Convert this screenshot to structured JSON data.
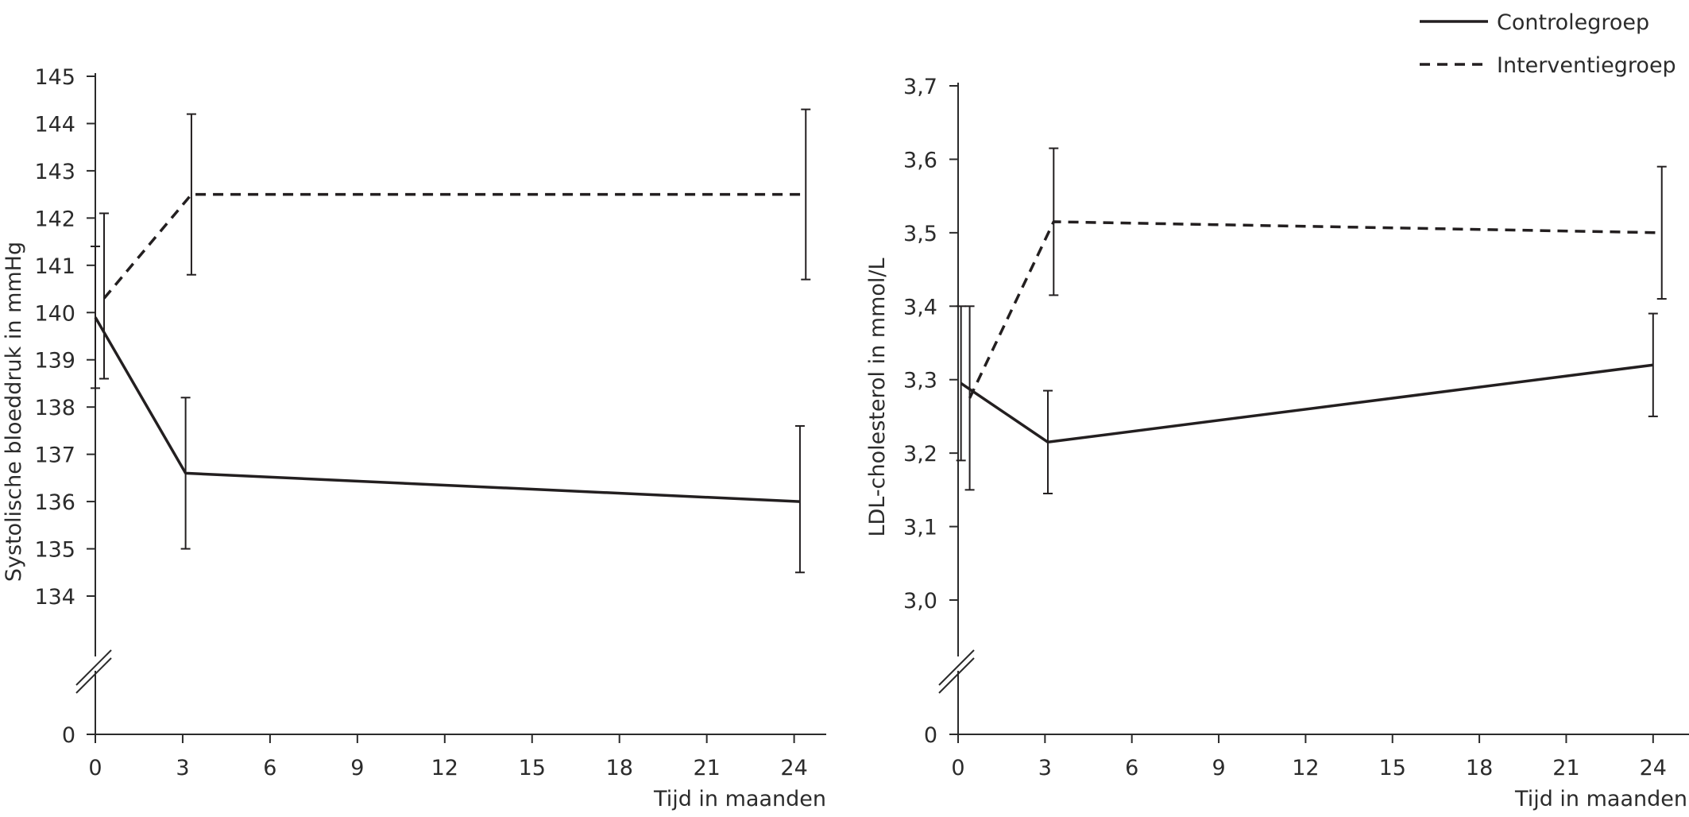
{
  "chart_data": [
    {
      "type": "line",
      "title": "",
      "xlabel": "Tijd in maanden",
      "ylabel": "Systolische bloeddruk in mmHg",
      "x_ticks": [
        0,
        3,
        6,
        9,
        12,
        15,
        18,
        21,
        24
      ],
      "x_tick_labels": [
        "0",
        "3",
        "6",
        "9",
        "12",
        "15",
        "18",
        "21",
        "24"
      ],
      "xlim": [
        0,
        25
      ],
      "y_ticks": [
        134,
        135,
        136,
        137,
        138,
        139,
        140,
        141,
        142,
        143,
        144,
        145
      ],
      "y_tick_labels": [
        "134",
        "135",
        "136",
        "137",
        "138",
        "139",
        "140",
        "141",
        "142",
        "143",
        "144",
        "145"
      ],
      "ylim": [
        134,
        145
      ],
      "y_zero_label": "0",
      "axis_break": true,
      "grid": false,
      "series": [
        {
          "name": "Controlegroep",
          "style": "solid",
          "points": [
            {
              "x": 0.0,
              "y": 139.9,
              "err_low": 138.4,
              "err_high": 141.4
            },
            {
              "x": 3.1,
              "y": 136.6,
              "err_low": 135.0,
              "err_high": 138.2
            },
            {
              "x": 24.2,
              "y": 136.0,
              "err_low": 134.5,
              "err_high": 137.6
            }
          ]
        },
        {
          "name": "Interventiegroep",
          "style": "dashed",
          "points": [
            {
              "x": 0.3,
              "y": 140.3,
              "err_low": 138.6,
              "err_high": 142.1
            },
            {
              "x": 3.3,
              "y": 142.5,
              "err_low": 140.8,
              "err_high": 144.2
            },
            {
              "x": 24.4,
              "y": 142.5,
              "err_low": 140.7,
              "err_high": 144.3
            }
          ]
        }
      ]
    },
    {
      "type": "line",
      "title": "",
      "xlabel": "Tijd in maanden",
      "ylabel": "LDL-cholesterol in mmol/L",
      "x_ticks": [
        0,
        3,
        6,
        9,
        12,
        15,
        18,
        21,
        24
      ],
      "x_tick_labels": [
        "0",
        "3",
        "6",
        "9",
        "12",
        "15",
        "18",
        "21",
        "24"
      ],
      "xlim": [
        0,
        25
      ],
      "y_ticks": [
        3.0,
        3.1,
        3.2,
        3.3,
        3.4,
        3.5,
        3.6,
        3.7
      ],
      "y_tick_labels": [
        "3,0",
        "3,1",
        "3,2",
        "3,3",
        "3,4",
        "3,5",
        "3,6",
        "3,7"
      ],
      "ylim": [
        3.0,
        3.7
      ],
      "y_zero_label": "0",
      "axis_break": true,
      "grid": false,
      "series": [
        {
          "name": "Controlegroep",
          "style": "solid",
          "points": [
            {
              "x": 0.1,
              "y": 3.295,
              "err_low": 3.19,
              "err_high": 3.4
            },
            {
              "x": 3.1,
              "y": 3.215,
              "err_low": 3.145,
              "err_high": 3.285
            },
            {
              "x": 24.0,
              "y": 3.32,
              "err_low": 3.25,
              "err_high": 3.39
            }
          ]
        },
        {
          "name": "Interventiegroep",
          "style": "dashed",
          "points": [
            {
              "x": 0.4,
              "y": 3.275,
              "err_low": 3.15,
              "err_high": 3.4
            },
            {
              "x": 3.3,
              "y": 3.515,
              "err_low": 3.415,
              "err_high": 3.615
            },
            {
              "x": 24.3,
              "y": 3.5,
              "err_low": 3.41,
              "err_high": 3.59
            }
          ]
        }
      ]
    }
  ],
  "legend": {
    "placement": "top-right",
    "entries": [
      {
        "label": "Controlegroep",
        "style": "solid"
      },
      {
        "label": "Interventiegroep",
        "style": "dashed"
      }
    ]
  },
  "colors": {
    "line": "#231f20",
    "axis": "#2b2b2b",
    "background": "#ffffff"
  }
}
